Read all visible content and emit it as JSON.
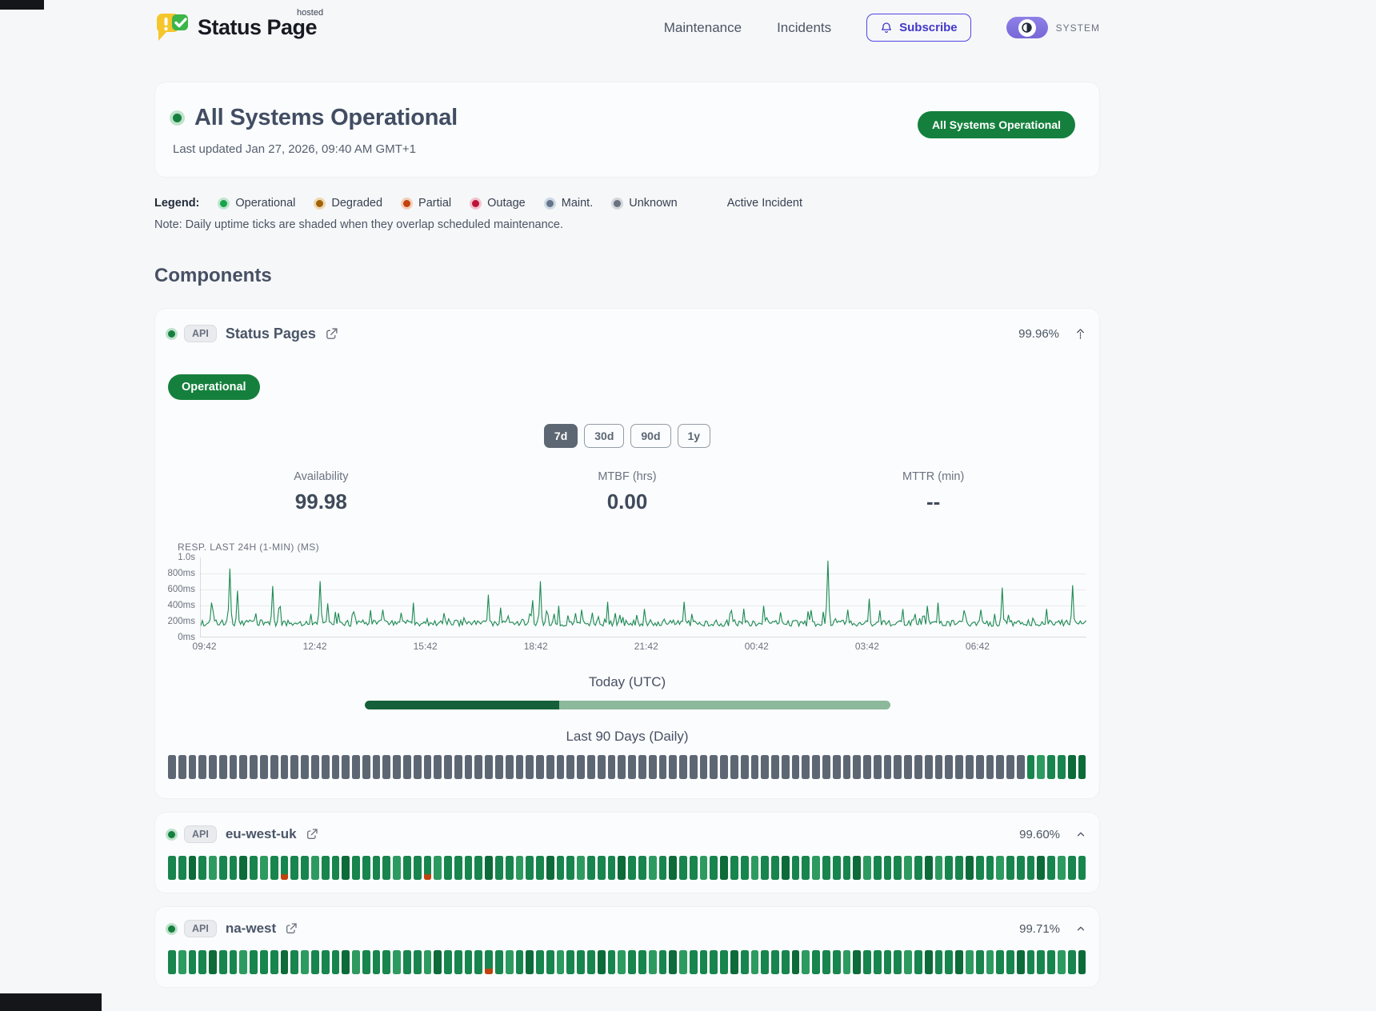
{
  "header": {
    "brand": {
      "title": "Status Page",
      "superscript": "hosted"
    },
    "nav": {
      "maintenance": "Maintenance",
      "incidents": "Incidents"
    },
    "subscribe_label": "Subscribe",
    "theme_label": "SYSTEM"
  },
  "hero": {
    "title": "All Systems Operational",
    "updated": "Last updated Jan 27, 2026, 09:40 AM GMT+1",
    "badge": "All Systems Operational",
    "status_color": "#15803d",
    "status_ring": "#bfe2cc"
  },
  "legend": {
    "label": "Legend:",
    "items": [
      {
        "label": "Operational",
        "color": "#16a34a",
        "ring": "#c0e4cd"
      },
      {
        "label": "Degraded",
        "color": "#a16207",
        "ring": "#ecd9ae"
      },
      {
        "label": "Partial",
        "color": "#c2410c",
        "ring": "#f2cfba"
      },
      {
        "label": "Outage",
        "color": "#be123c",
        "ring": "#f0c4ce"
      },
      {
        "label": "Maint.",
        "color": "#64748b",
        "ring": "#cdd9e4"
      },
      {
        "label": "Unknown",
        "color": "#6b7280",
        "ring": "#d4d7db"
      }
    ],
    "active_incident": "Active Incident",
    "note": "Note: Daily uptime ticks are shaded when they overlap scheduled maintenance."
  },
  "components_title": "Components",
  "primary": {
    "tag": "API",
    "name": "Status Pages",
    "uptime": "99.96%",
    "status_badge": "Operational",
    "ranges": [
      {
        "label": "7d",
        "active": true
      },
      {
        "label": "30d",
        "active": false
      },
      {
        "label": "90d",
        "active": false
      },
      {
        "label": "1y",
        "active": false
      }
    ],
    "stats": [
      {
        "label": "Availability",
        "value": "99.98"
      },
      {
        "label": "MTBF (hrs)",
        "value": "0.00"
      },
      {
        "label": "MTTR (min)",
        "value": "--"
      }
    ],
    "today": {
      "label": "Today (UTC)",
      "progress_pct": 37
    },
    "last90": {
      "label": "Last 90 Days (Daily)",
      "ticks": [
        "uuuuuuuuuu",
        "uuuuuuuuuu",
        "uuuuuuuuuu",
        "uuuuuuuuuu",
        "uuuuuuuuuu",
        "uuuuuuuuuu",
        "uuuuuuuuuu",
        "uuuuuuuuuu",
        "uuuuoloodd"
      ]
    }
  },
  "chart_data": {
    "type": "line",
    "title": "RESP. LAST 24H (1-MIN) (MS)",
    "x_ticks": [
      "09:42",
      "12:42",
      "15:42",
      "18:42",
      "21:42",
      "00:42",
      "03:42",
      "06:42"
    ],
    "y_ticks": [
      "1.0s",
      "800ms",
      "600ms",
      "400ms",
      "200ms",
      "0ms"
    ],
    "ylim": [
      0,
      1000
    ],
    "baseline_ms": [
      132,
      212
    ],
    "line_color": "#1b8a53",
    "grid": true,
    "spikes": [
      [
        0.012,
        430
      ],
      [
        0.033,
        860
      ],
      [
        0.041,
        580
      ],
      [
        0.082,
        640
      ],
      [
        0.09,
        380
      ],
      [
        0.135,
        700
      ],
      [
        0.143,
        420
      ],
      [
        0.205,
        340
      ],
      [
        0.24,
        430
      ],
      [
        0.325,
        530
      ],
      [
        0.375,
        460
      ],
      [
        0.383,
        700
      ],
      [
        0.405,
        390
      ],
      [
        0.43,
        340
      ],
      [
        0.46,
        440
      ],
      [
        0.5,
        350
      ],
      [
        0.545,
        440
      ],
      [
        0.6,
        330
      ],
      [
        0.635,
        390
      ],
      [
        0.685,
        320
      ],
      [
        0.708,
        960
      ],
      [
        0.73,
        340
      ],
      [
        0.755,
        480
      ],
      [
        0.82,
        390
      ],
      [
        0.832,
        430
      ],
      [
        0.88,
        340
      ],
      [
        0.905,
        620
      ],
      [
        0.955,
        350
      ],
      [
        0.985,
        650
      ]
    ]
  },
  "others": [
    {
      "tag": "API",
      "name": "eu-west-uk",
      "uptime": "99.60%",
      "ticks": [
        "oodoloodol",
        "opooloodoo",
        "oolooplooo",
        "odooloodoo",
        "looodoolod",
        "oolodooloo",
        "doolooodlo",
        "oolodloodo",
        "olooodoloo"
      ]
    },
    {
      "tag": "API",
      "name": "na-west",
      "uptime": "99.71%",
      "ticks": [
        "oloodooloo",
        "odolooodlo",
        "oolooldooo",
        "opolodoolo",
        "oodoloolod",
        "loooodoloo",
        "odloooldoo",
        "oolodoodlo",
        "loodooolod"
      ]
    }
  ],
  "tick_colors": {
    "u": "#5d6774",
    "o": "#17854d",
    "l": "#2d9a60",
    "d": "#0c6b39",
    "p_top": "#17854d",
    "p_bottom": "#c2410c"
  }
}
